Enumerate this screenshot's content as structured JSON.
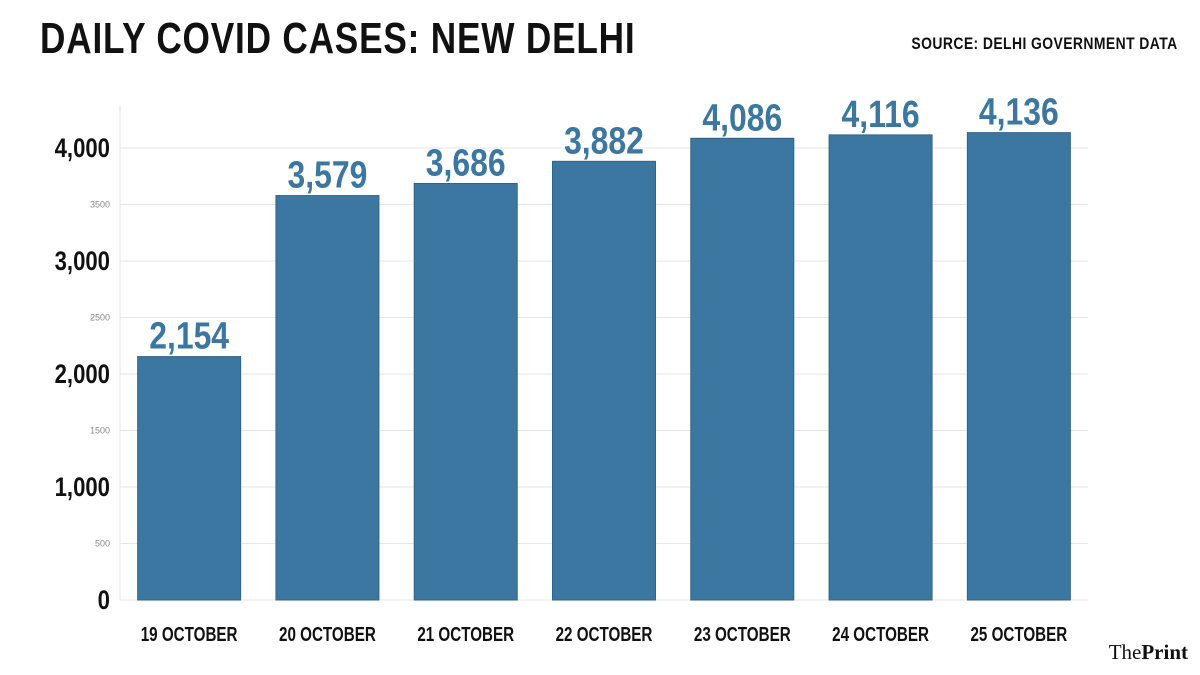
{
  "header": {
    "title": "DAILY COVID CASES: NEW DELHI",
    "source": "SOURCE: DELHI GOVERNMENT DATA"
  },
  "logo": {
    "prefix": "The",
    "name": "Print"
  },
  "chart_data": {
    "type": "bar",
    "title": "DAILY COVID CASES: NEW DELHI",
    "xlabel": "",
    "ylabel": "",
    "categories": [
      "19 OCTOBER",
      "20 OCTOBER",
      "21 OCTOBER",
      "22 OCTOBER",
      "23 OCTOBER",
      "24 OCTOBER",
      "25 OCTOBER"
    ],
    "values": [
      2154,
      3579,
      3686,
      3882,
      4086,
      4116,
      4136
    ],
    "value_labels": [
      "2,154",
      "3,579",
      "3,686",
      "3,882",
      "4,086",
      "4,116",
      "4,136"
    ],
    "ylim": [
      0,
      4200
    ],
    "major_ticks": [
      {
        "value": 0,
        "label": "0"
      },
      {
        "value": 1000,
        "label": "1,000"
      },
      {
        "value": 2000,
        "label": "2,000"
      },
      {
        "value": 3000,
        "label": "3,000"
      },
      {
        "value": 4000,
        "label": "4,000"
      }
    ],
    "minor_ticks": [
      {
        "value": 500,
        "label": "500"
      },
      {
        "value": 1500,
        "label": "1500"
      },
      {
        "value": 2500,
        "label": "2500"
      },
      {
        "value": 3500,
        "label": "3500"
      }
    ],
    "grid": true,
    "legend": "none",
    "colors": {
      "bar": "#3b77a0",
      "value_label": "#3b77a0",
      "grid": "#e6e6e6"
    }
  }
}
